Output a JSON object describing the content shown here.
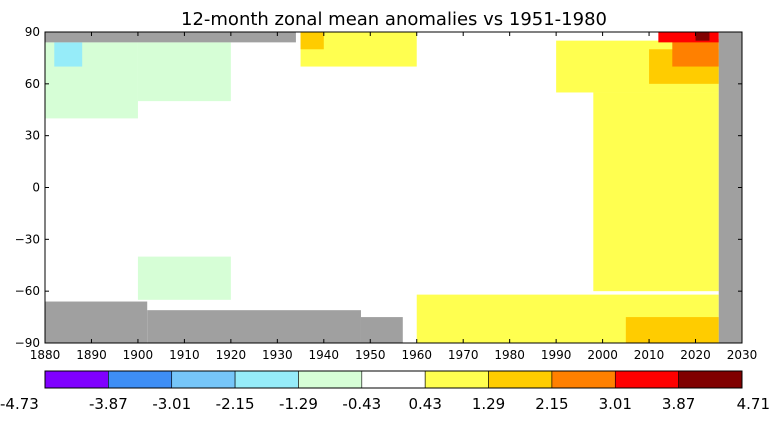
{
  "chart_data": {
    "type": "heatmap",
    "title": "12-month zonal mean anomalies vs 1951-1980",
    "xlabel": "",
    "ylabel": "",
    "xlim": [
      1880,
      2030
    ],
    "ylim": [
      -90,
      90
    ],
    "x_ticks": [
      1880,
      1890,
      1900,
      1910,
      1920,
      1930,
      1940,
      1950,
      1960,
      1970,
      1980,
      1990,
      2000,
      2010,
      2020,
      2030
    ],
    "y_ticks": [
      90,
      60,
      30,
      0,
      -30,
      -60,
      -90
    ],
    "x_tick_labels": [
      "1880",
      "1890",
      "1900",
      "1910",
      "1920",
      "1930",
      "1940",
      "1950",
      "1960",
      "1970",
      "1980",
      "1990",
      "2000",
      "2010",
      "2020",
      "2030"
    ],
    "y_tick_labels": [
      "90",
      "60",
      "30",
      "0",
      "−30",
      "−60",
      "−90"
    ],
    "missing_color": "#a0a0a0",
    "colorbar": {
      "colors": [
        "#8000ff",
        "#3e8ef5",
        "#76c6f9",
        "#96ecf9",
        "#d6fed6",
        "#ffffff",
        "#ffff50",
        "#ffcc00",
        "#ff8000",
        "#ff0000",
        "#800000"
      ],
      "boundaries": [
        "-4.73",
        "-3.87",
        "-3.01",
        "-2.15",
        "-1.29",
        "-0.43",
        "0.43",
        "1.29",
        "2.15",
        "3.01",
        "3.87",
        "4.71"
      ]
    },
    "anomaly_regions": [
      {
        "year_range": [
          1880,
          1934
        ],
        "lat_range": [
          84,
          90
        ],
        "level": "missing"
      },
      {
        "year_range": [
          1880,
          1902
        ],
        "lat_range": [
          -90,
          -66
        ],
        "level": "missing"
      },
      {
        "year_range": [
          1902,
          1948
        ],
        "lat_range": [
          -90,
          -71
        ],
        "level": "missing"
      },
      {
        "year_range": [
          1948,
          1957
        ],
        "lat_range": [
          -90,
          -75
        ],
        "level": "missing"
      },
      {
        "year_range": [
          2025,
          2030
        ],
        "lat_range": [
          -90,
          90
        ],
        "level": "missing"
      },
      {
        "year_range": [
          1880,
          1900
        ],
        "lat_range": [
          40,
          84
        ],
        "level": "-0.86"
      },
      {
        "year_range": [
          1900,
          1920
        ],
        "lat_range": [
          50,
          84
        ],
        "level": "-0.86"
      },
      {
        "year_range": [
          1882,
          1888
        ],
        "lat_range": [
          70,
          84
        ],
        "level": "-1.72"
      },
      {
        "year_range": [
          1900,
          1920
        ],
        "lat_range": [
          -65,
          -40
        ],
        "level": "-0.86"
      },
      {
        "year_range": [
          1935,
          1960
        ],
        "lat_range": [
          70,
          90
        ],
        "level": "0.86"
      },
      {
        "year_range": [
          1935,
          1940
        ],
        "lat_range": [
          80,
          90
        ],
        "level": "1.72"
      },
      {
        "year_range": [
          1998,
          2025
        ],
        "lat_range": [
          -60,
          55
        ],
        "level": "0.86"
      },
      {
        "year_range": [
          1990,
          2025
        ],
        "lat_range": [
          55,
          85
        ],
        "level": "0.86"
      },
      {
        "year_range": [
          2010,
          2025
        ],
        "lat_range": [
          60,
          80
        ],
        "level": "1.72"
      },
      {
        "year_range": [
          2015,
          2025
        ],
        "lat_range": [
          70,
          86
        ],
        "level": "2.58"
      },
      {
        "year_range": [
          2012,
          2025
        ],
        "lat_range": [
          84,
          90
        ],
        "level": "3.44"
      },
      {
        "year_range": [
          2020,
          2023
        ],
        "lat_range": [
          85,
          90
        ],
        "level": "4.3"
      },
      {
        "year_range": [
          1960,
          2025
        ],
        "lat_range": [
          -90,
          -62
        ],
        "level": "0.86"
      },
      {
        "year_range": [
          2005,
          2025
        ],
        "lat_range": [
          -90,
          -75
        ],
        "level": "1.72"
      }
    ]
  }
}
